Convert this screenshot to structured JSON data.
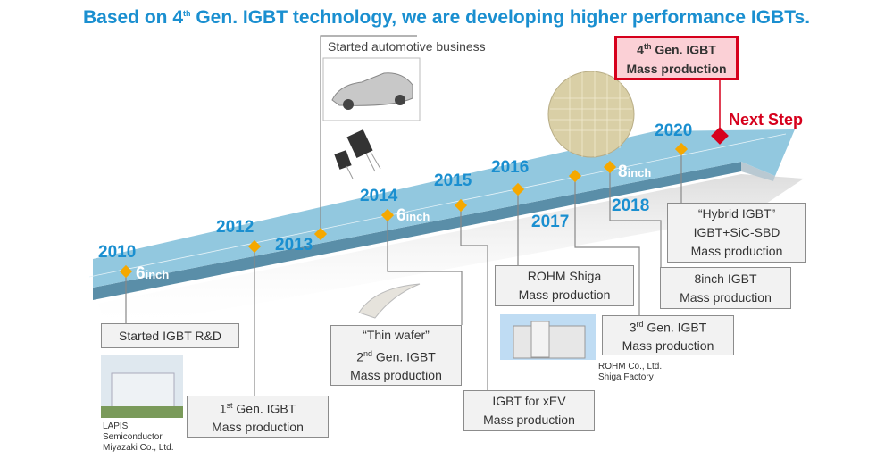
{
  "title": {
    "pre": "Based on 4",
    "sup": "th",
    "post": " Gen. IGBT technology, we are developing higher performance IGBTs."
  },
  "years": {
    "y2010": "2010",
    "y2012": "2012",
    "y2013": "2013",
    "y2014": "2014",
    "y2015": "2015",
    "y2016": "2016",
    "y2017": "2017",
    "y2018": "2018",
    "y2020": "2020"
  },
  "wafer_sizes": {
    "six_num": "6",
    "six_unit": "inch",
    "eight_num": "8",
    "eight_unit": "inch"
  },
  "next_step": "Next Step",
  "automotive": "Started automotive business",
  "boxes": {
    "rd": "Started IGBT R&D",
    "gen1": {
      "pre": "1",
      "sup": "st",
      "post": " Gen. IGBT",
      "line2": "Mass production"
    },
    "thin": {
      "line1": "“Thin wafer”",
      "pre": "2",
      "sup": "nd",
      "post": " Gen. IGBT",
      "line3": "Mass production"
    },
    "xev": {
      "line1": "IGBT for xEV",
      "line2": "Mass production"
    },
    "shiga": {
      "line1": "ROHM Shiga",
      "line2": "Mass production"
    },
    "gen3": {
      "pre": "3",
      "sup": "rd",
      "post": " Gen. IGBT",
      "line2": "Mass production"
    },
    "eight": {
      "line1": "8inch IGBT",
      "line2": "Mass production"
    },
    "hybrid": {
      "line1": "“Hybrid IGBT”",
      "line2": "IGBT+SiC-SBD",
      "line3": "Mass production"
    },
    "gen4": {
      "pre": "4",
      "sup": "th",
      "post": " Gen. IGBT",
      "line2": "Mass production"
    }
  },
  "captions": {
    "lapis": [
      "LAPIS",
      "Semiconductor",
      "Miyazaki Co., Ltd."
    ],
    "factory": [
      "ROHM Co., Ltd.",
      "Shiga Factory"
    ]
  },
  "colors": {
    "accent": "#1a8fd0",
    "milestone": "#f5a800",
    "next": "#d6001c",
    "arrow": "#92c8df"
  }
}
